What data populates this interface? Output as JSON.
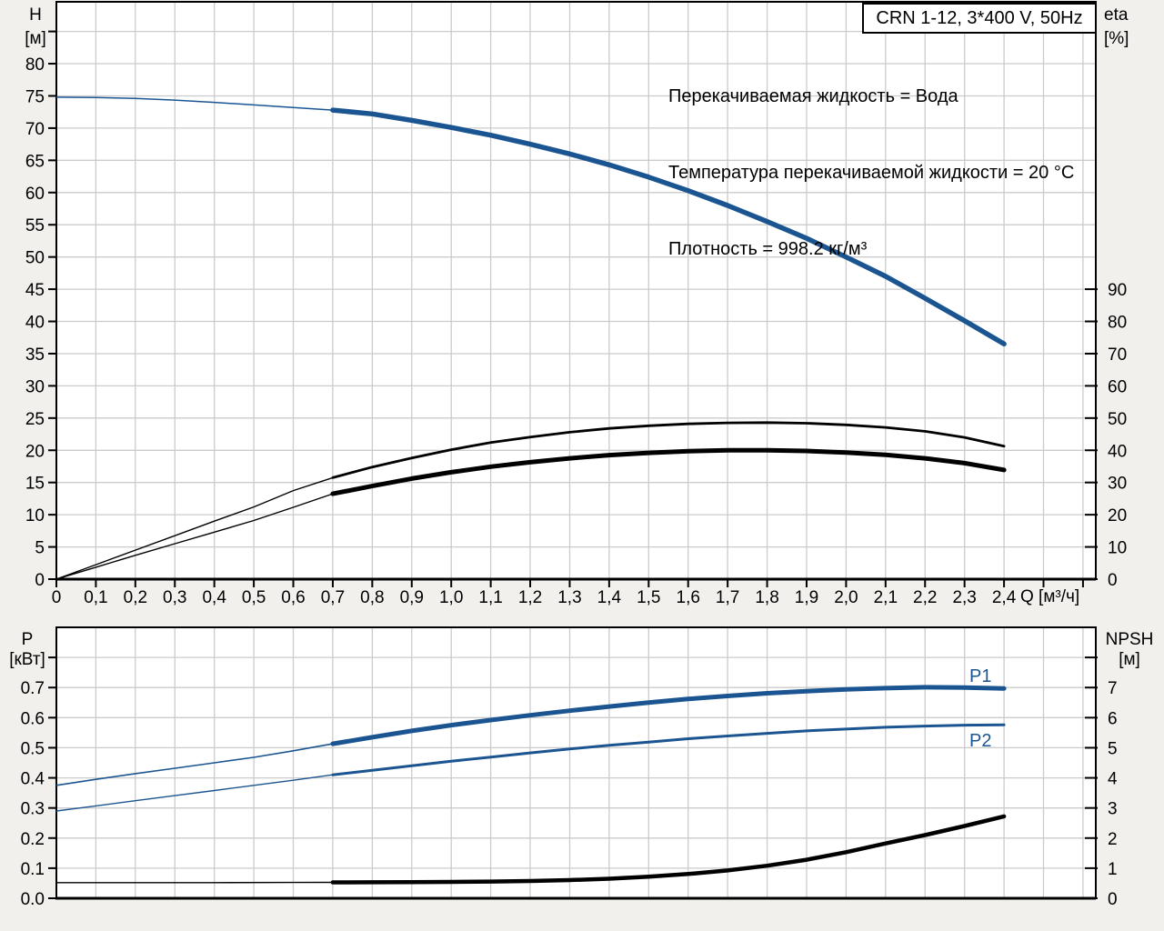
{
  "title_box": {
    "label": "CRN 1-12, 3*400 V, 50Hz"
  },
  "conditions": {
    "lines": [
      "Перекачиваемая жидкость = Вода",
      "Температура перекачиваемой жидкости = 20 °C",
      "Плотность = 998.2 кг/м³"
    ]
  },
  "colors": {
    "curve_blue": "#1b5591",
    "curve_black": "#000000",
    "grid": "#cbcbcb",
    "frame": "#000000",
    "plot_bg": "#ffffff",
    "page_bg": "#f1f0ed"
  },
  "chart_data": [
    {
      "type": "line",
      "title": "CRN 1-12, 3*400 V, 50Hz",
      "x_axis": {
        "label": "Q [м³/ч]",
        "min": 0,
        "max": 2.63,
        "tick_step": 0.1,
        "tick_labels": [
          "0",
          "0,1",
          "0,2",
          "0,3",
          "0,4",
          "0,5",
          "0,6",
          "0,7",
          "0,8",
          "0,9",
          "1,0",
          "1,1",
          "1,2",
          "1,3",
          "1,4",
          "1,5",
          "1,6",
          "1,7",
          "1,8",
          "1,9",
          "2,0",
          "2,1",
          "2,2",
          "2,3",
          "2,4"
        ]
      },
      "y_left_axis": {
        "name": "H",
        "unit": "[м]",
        "min": 0,
        "max": 89.6,
        "tick_step": 5,
        "tick_labels": [
          "0",
          "5",
          "10",
          "15",
          "20",
          "25",
          "30",
          "35",
          "40",
          "45",
          "50",
          "55",
          "60",
          "65",
          "70",
          "75",
          "80"
        ]
      },
      "y_right_axis": {
        "name": "eta",
        "unit": "[%]",
        "min": 0,
        "max": 90,
        "tick_step": 10,
        "tick_labels": [
          "0",
          "10",
          "20",
          "30",
          "40",
          "50",
          "60",
          "70",
          "80",
          "90"
        ]
      },
      "grid": true,
      "series": [
        {
          "name": "head-curve",
          "label": "",
          "axis": "left",
          "color": "#1b5591",
          "split_q": 0.7,
          "thin": 1.5,
          "thick": 5.5,
          "points": [
            [
              0,
              74.8
            ],
            [
              0.1,
              74.75
            ],
            [
              0.2,
              74.6
            ],
            [
              0.3,
              74.35
            ],
            [
              0.4,
              74.0
            ],
            [
              0.5,
              73.6
            ],
            [
              0.6,
              73.2
            ],
            [
              0.7,
              72.8
            ],
            [
              0.8,
              72.2
            ],
            [
              0.9,
              71.2
            ],
            [
              1.0,
              70.1
            ],
            [
              1.1,
              68.9
            ],
            [
              1.2,
              67.5
            ],
            [
              1.3,
              66.0
            ],
            [
              1.4,
              64.3
            ],
            [
              1.5,
              62.4
            ],
            [
              1.6,
              60.3
            ],
            [
              1.7,
              58.0
            ],
            [
              1.8,
              55.5
            ],
            [
              1.9,
              52.9
            ],
            [
              2.0,
              50.0
            ],
            [
              2.1,
              47.0
            ],
            [
              2.2,
              43.6
            ],
            [
              2.3,
              40.1
            ],
            [
              2.4,
              36.5
            ]
          ]
        },
        {
          "name": "eta-pump-curve",
          "label": "",
          "axis": "right",
          "color": "#000000",
          "split_q": 0.7,
          "thin": 1.4,
          "thick": 2.8,
          "points": [
            [
              0,
              0
            ],
            [
              0.1,
              4.5
            ],
            [
              0.2,
              9.0
            ],
            [
              0.3,
              13.5
            ],
            [
              0.4,
              18.0
            ],
            [
              0.5,
              22.4
            ],
            [
              0.6,
              27.5
            ],
            [
              0.7,
              31.5
            ],
            [
              0.8,
              34.8
            ],
            [
              0.9,
              37.6
            ],
            [
              1.0,
              40.2
            ],
            [
              1.1,
              42.4
            ],
            [
              1.2,
              44.1
            ],
            [
              1.3,
              45.6
            ],
            [
              1.4,
              46.8
            ],
            [
              1.5,
              47.6
            ],
            [
              1.6,
              48.2
            ],
            [
              1.7,
              48.5
            ],
            [
              1.8,
              48.6
            ],
            [
              1.9,
              48.4
            ],
            [
              2.0,
              47.9
            ],
            [
              2.1,
              47.1
            ],
            [
              2.2,
              45.9
            ],
            [
              2.3,
              44.0
            ],
            [
              2.4,
              41.3
            ]
          ]
        },
        {
          "name": "eta-pump-motor-curve",
          "label": "",
          "axis": "right",
          "color": "#000000",
          "split_q": 0.7,
          "thin": 1.4,
          "thick": 5.0,
          "points": [
            [
              0,
              0
            ],
            [
              0.1,
              3.7
            ],
            [
              0.2,
              7.4
            ],
            [
              0.3,
              11.0
            ],
            [
              0.4,
              14.6
            ],
            [
              0.5,
              18.2
            ],
            [
              0.6,
              22.3
            ],
            [
              0.7,
              26.5
            ],
            [
              0.8,
              28.9
            ],
            [
              0.9,
              31.2
            ],
            [
              1.0,
              33.2
            ],
            [
              1.1,
              34.9
            ],
            [
              1.2,
              36.3
            ],
            [
              1.3,
              37.5
            ],
            [
              1.4,
              38.5
            ],
            [
              1.5,
              39.2
            ],
            [
              1.6,
              39.7
            ],
            [
              1.7,
              40.0
            ],
            [
              1.8,
              40.0
            ],
            [
              1.9,
              39.8
            ],
            [
              2.0,
              39.3
            ],
            [
              2.1,
              38.6
            ],
            [
              2.2,
              37.5
            ],
            [
              2.3,
              36.0
            ],
            [
              2.4,
              33.9
            ]
          ]
        }
      ]
    },
    {
      "type": "line",
      "title": "",
      "x_axis": {
        "label": "",
        "min": 0,
        "max": 2.63,
        "tick_step": 0.1,
        "tick_labels": []
      },
      "y_left_axis": {
        "name": "P",
        "unit": "[кВт]",
        "min": 0,
        "max": 0.9,
        "tick_step": 0.1,
        "tick_labels": [
          "0.0",
          "0.1",
          "0.2",
          "0.3",
          "0.4",
          "0.5",
          "0.6",
          "0.7"
        ]
      },
      "y_right_axis": {
        "name": "NPSH",
        "unit": "[м]",
        "min": 0,
        "max": 9,
        "tick_step": 1,
        "tick_labels": [
          "0",
          "1",
          "2",
          "3",
          "4",
          "5",
          "6",
          "7"
        ]
      },
      "grid": true,
      "series": [
        {
          "name": "p1-curve",
          "label": "P1",
          "axis": "left",
          "color": "#1b5591",
          "split_q": 0.7,
          "thin": 1.6,
          "thick": 5.0,
          "points": [
            [
              0,
              0.375
            ],
            [
              0.1,
              0.395
            ],
            [
              0.2,
              0.414
            ],
            [
              0.3,
              0.432
            ],
            [
              0.4,
              0.45
            ],
            [
              0.5,
              0.468
            ],
            [
              0.6,
              0.49
            ],
            [
              0.7,
              0.513
            ],
            [
              0.8,
              0.535
            ],
            [
              0.9,
              0.556
            ],
            [
              1.0,
              0.575
            ],
            [
              1.1,
              0.592
            ],
            [
              1.2,
              0.608
            ],
            [
              1.3,
              0.623
            ],
            [
              1.4,
              0.637
            ],
            [
              1.5,
              0.65
            ],
            [
              1.6,
              0.662
            ],
            [
              1.7,
              0.672
            ],
            [
              1.8,
              0.681
            ],
            [
              1.9,
              0.688
            ],
            [
              2.0,
              0.694
            ],
            [
              2.1,
              0.698
            ],
            [
              2.2,
              0.701
            ],
            [
              2.3,
              0.7
            ],
            [
              2.4,
              0.697
            ]
          ]
        },
        {
          "name": "p2-curve",
          "label": "P2",
          "axis": "left",
          "color": "#1b5591",
          "split_q": 0.7,
          "thin": 1.4,
          "thick": 3.0,
          "points": [
            [
              0,
              0.29
            ],
            [
              0.1,
              0.307
            ],
            [
              0.2,
              0.324
            ],
            [
              0.3,
              0.341
            ],
            [
              0.4,
              0.358
            ],
            [
              0.5,
              0.375
            ],
            [
              0.6,
              0.392
            ],
            [
              0.7,
              0.41
            ],
            [
              0.8,
              0.425
            ],
            [
              0.9,
              0.44
            ],
            [
              1.0,
              0.455
            ],
            [
              1.1,
              0.469
            ],
            [
              1.2,
              0.483
            ],
            [
              1.3,
              0.496
            ],
            [
              1.4,
              0.508
            ],
            [
              1.5,
              0.519
            ],
            [
              1.6,
              0.53
            ],
            [
              1.7,
              0.539
            ],
            [
              1.8,
              0.548
            ],
            [
              1.9,
              0.556
            ],
            [
              2.0,
              0.562
            ],
            [
              2.1,
              0.568
            ],
            [
              2.2,
              0.572
            ],
            [
              2.3,
              0.575
            ],
            [
              2.4,
              0.576
            ]
          ]
        },
        {
          "name": "npsh-curve",
          "label": "",
          "axis": "right",
          "color": "#000000",
          "split_q": 0.7,
          "thin": 1.4,
          "thick": 4.5,
          "points": [
            [
              0,
              0.52
            ],
            [
              0.2,
              0.52
            ],
            [
              0.4,
              0.52
            ],
            [
              0.6,
              0.525
            ],
            [
              0.7,
              0.53
            ],
            [
              0.8,
              0.532
            ],
            [
              0.9,
              0.537
            ],
            [
              1.0,
              0.545
            ],
            [
              1.1,
              0.557
            ],
            [
              1.2,
              0.575
            ],
            [
              1.3,
              0.605
            ],
            [
              1.4,
              0.65
            ],
            [
              1.5,
              0.715
            ],
            [
              1.6,
              0.805
            ],
            [
              1.7,
              0.925
            ],
            [
              1.8,
              1.08
            ],
            [
              1.9,
              1.28
            ],
            [
              2.0,
              1.53
            ],
            [
              2.1,
              1.82
            ],
            [
              2.2,
              2.1
            ],
            [
              2.3,
              2.4
            ],
            [
              2.4,
              2.72
            ]
          ]
        }
      ]
    }
  ]
}
